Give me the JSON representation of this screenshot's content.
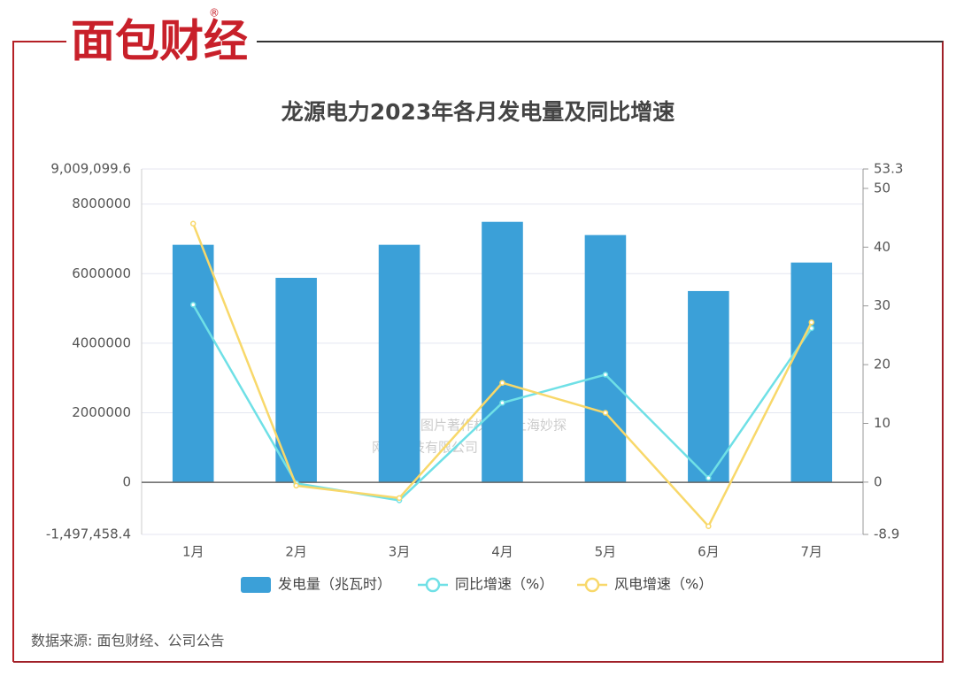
{
  "brand": {
    "name": "面包财经",
    "mark": "®"
  },
  "chart_data": {
    "type": "bar",
    "title": "龙源电力2023年各月发电量及同比增速",
    "categories": [
      "1月",
      "2月",
      "3月",
      "4月",
      "5月",
      "6月",
      "7月"
    ],
    "series": [
      {
        "name": "发电量（兆瓦时）",
        "type": "bar",
        "color": "#3ba0d8",
        "values": [
          6830000,
          5880000,
          6830000,
          7490000,
          7110000,
          5500000,
          6320000
        ]
      },
      {
        "name": "同比增速（%）",
        "type": "line",
        "axis": "y2",
        "color": "#6fe0e6",
        "values": [
          30.2,
          -0.2,
          -3.1,
          13.5,
          18.3,
          0.7,
          26.2
        ]
      },
      {
        "name": "风电增速（%）",
        "type": "line",
        "axis": "y2",
        "color": "#f8d86a",
        "values": [
          44.0,
          -0.6,
          -2.7,
          16.9,
          11.8,
          -7.5,
          27.2
        ]
      }
    ],
    "ylim": [
      -1497458.4,
      9009099.6
    ],
    "yticks": [
      {
        "value": -1497458.4,
        "label": "-1,497,458.4"
      },
      0,
      2000000,
      4000000,
      6000000,
      8000000,
      {
        "value": 9009099.6,
        "label": "9,009,099.6"
      }
    ],
    "y2lim": [
      -8.9,
      53.3
    ],
    "y2ticks": [
      -8.9,
      0,
      10,
      20,
      30,
      40,
      50,
      53.3
    ],
    "grid": true,
    "legend": "bottom"
  },
  "watermark": [
    "本图表图片著作权属于上海妙探",
    "网络科技有限公司"
  ],
  "source": "数据来源: 面包财经、公司公告"
}
